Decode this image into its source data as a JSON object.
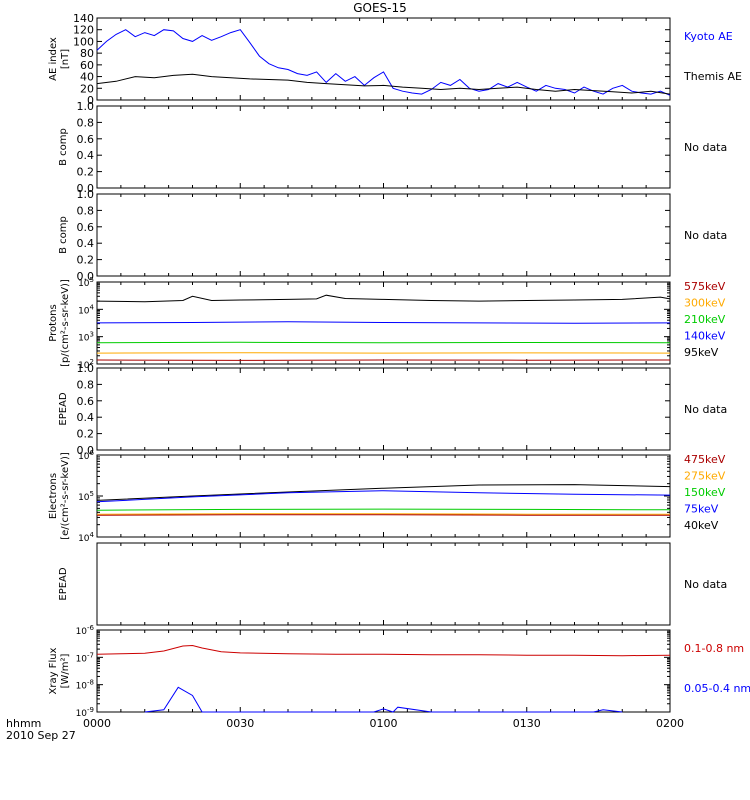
{
  "title": "GOES-15",
  "time_axis": {
    "ticks": [
      "0000",
      "0030",
      "0100",
      "0130",
      "0200"
    ],
    "tick_minutes": [
      0,
      30,
      60,
      90,
      120
    ],
    "range_minutes": [
      0,
      120
    ],
    "corner_label_1": "hhmm",
    "corner_label_2": "2010 Sep 27"
  },
  "colors": {
    "axis": "#000000",
    "blue": "#0000ff",
    "black": "#000000",
    "red": "#cc0000",
    "orange": "#ffaa00",
    "green": "#00cc00",
    "darkred": "#aa0000"
  },
  "chart_data": [
    {
      "type": "line",
      "panel": "ae",
      "ylabel": [
        "AE index",
        "[nT]"
      ],
      "ylim": [
        0,
        140
      ],
      "scale": "linear",
      "y_ticks": [
        0,
        20,
        40,
        60,
        80,
        100,
        120,
        140
      ],
      "legend": [
        {
          "text": "Kyoto AE",
          "color": "#0000ff"
        },
        {
          "text": "Themis AE",
          "color": "#000000"
        }
      ],
      "series": [
        {
          "name": "Kyoto AE",
          "color": "#0000ff",
          "x": [
            0,
            2,
            4,
            6,
            8,
            10,
            12,
            14,
            16,
            18,
            20,
            22,
            24,
            26,
            28,
            30,
            32,
            34,
            36,
            38,
            40,
            42,
            44,
            46,
            48,
            50,
            52,
            54,
            56,
            58,
            60,
            62,
            64,
            66,
            68,
            70,
            72,
            74,
            76,
            78,
            80,
            82,
            84,
            86,
            88,
            90,
            92,
            94,
            96,
            98,
            100,
            102,
            104,
            106,
            108,
            110,
            112,
            114,
            116,
            118,
            120
          ],
          "y": [
            85,
            100,
            112,
            120,
            108,
            115,
            110,
            120,
            118,
            105,
            100,
            110,
            102,
            108,
            115,
            120,
            98,
            75,
            62,
            55,
            52,
            45,
            42,
            48,
            30,
            45,
            32,
            40,
            25,
            38,
            48,
            20,
            15,
            12,
            10,
            18,
            30,
            25,
            35,
            20,
            15,
            18,
            28,
            22,
            30,
            22,
            15,
            25,
            20,
            18,
            12,
            22,
            15,
            10,
            20,
            25,
            15,
            12,
            10,
            15,
            8
          ]
        },
        {
          "name": "Themis AE",
          "color": "#000000",
          "x": [
            0,
            4,
            8,
            12,
            16,
            20,
            24,
            28,
            32,
            36,
            40,
            44,
            48,
            52,
            56,
            60,
            64,
            68,
            72,
            76,
            80,
            84,
            88,
            92,
            96,
            100,
            104,
            108,
            112,
            116,
            120
          ],
          "y": [
            28,
            32,
            40,
            38,
            42,
            44,
            40,
            38,
            36,
            35,
            34,
            30,
            28,
            26,
            24,
            25,
            22,
            20,
            18,
            20,
            18,
            20,
            22,
            18,
            15,
            18,
            16,
            14,
            12,
            15,
            10
          ]
        }
      ]
    },
    {
      "type": "line",
      "panel": "bcomp1",
      "ylabel": [
        "B comp"
      ],
      "ylim": [
        0,
        1.0
      ],
      "scale": "linear",
      "y_ticks": [
        0.0,
        0.2,
        0.4,
        0.6,
        0.8,
        1.0
      ],
      "legend": [
        {
          "text": "No data",
          "color": "#000000"
        }
      ],
      "series": []
    },
    {
      "type": "line",
      "panel": "bcomp2",
      "ylabel": [
        "B comp"
      ],
      "ylim": [
        0,
        1.0
      ],
      "scale": "linear",
      "y_ticks": [
        0.0,
        0.2,
        0.4,
        0.6,
        0.8,
        1.0
      ],
      "legend": [
        {
          "text": "No data",
          "color": "#000000"
        }
      ],
      "series": []
    },
    {
      "type": "line",
      "panel": "protons",
      "ylabel": [
        "Protons",
        "[p/(cm²-s-sr-keV)]"
      ],
      "ylim": [
        100,
        100000
      ],
      "scale": "log",
      "y_ticks_exp": [
        2,
        3,
        4,
        5
      ],
      "legend": [
        {
          "text": "575keV",
          "color": "#aa0000"
        },
        {
          "text": "300keV",
          "color": "#ffaa00"
        },
        {
          "text": "210keV",
          "color": "#00cc00"
        },
        {
          "text": "140keV",
          "color": "#0000ff"
        },
        {
          "text": "95keV",
          "color": "#000000"
        }
      ],
      "series": [
        {
          "name": "95keV",
          "color": "#000000",
          "x": [
            0,
            10,
            18,
            20,
            24,
            30,
            40,
            46,
            48,
            52,
            60,
            70,
            80,
            90,
            100,
            110,
            118,
            120
          ],
          "y": [
            20000,
            19000,
            21000,
            30000,
            21000,
            22000,
            23000,
            24000,
            33000,
            25000,
            23000,
            21000,
            20000,
            21000,
            22000,
            23000,
            28000,
            24000
          ]
        },
        {
          "name": "140keV",
          "color": "#0000ff",
          "x": [
            0,
            20,
            40,
            60,
            80,
            100,
            120
          ],
          "y": [
            3200,
            3300,
            3500,
            3300,
            3200,
            3100,
            3200
          ]
        },
        {
          "name": "210keV",
          "color": "#00cc00",
          "x": [
            0,
            30,
            60,
            90,
            120
          ],
          "y": [
            600,
            620,
            600,
            610,
            600
          ]
        },
        {
          "name": "300keV",
          "color": "#ffaa00",
          "x": [
            0,
            30,
            60,
            90,
            120
          ],
          "y": [
            250,
            260,
            250,
            255,
            250
          ]
        },
        {
          "name": "575keV",
          "color": "#aa0000",
          "x": [
            0,
            30,
            60,
            90,
            120
          ],
          "y": [
            140,
            135,
            140,
            138,
            140
          ]
        }
      ]
    },
    {
      "type": "line",
      "panel": "epead1",
      "ylabel": [
        "EPEAD"
      ],
      "ylim": [
        0,
        1.0
      ],
      "scale": "linear",
      "y_ticks": [
        0.0,
        0.2,
        0.4,
        0.6,
        0.8,
        1.0
      ],
      "legend": [
        {
          "text": "No data",
          "color": "#000000"
        }
      ],
      "series": []
    },
    {
      "type": "line",
      "panel": "electrons",
      "ylabel": [
        "Electrons",
        "[e/(cm²-s-sr-keV)]"
      ],
      "ylim": [
        10000,
        1000000
      ],
      "scale": "log",
      "y_ticks_exp": [
        4,
        5,
        6
      ],
      "legend": [
        {
          "text": "475keV",
          "color": "#aa0000"
        },
        {
          "text": "275keV",
          "color": "#ffaa00"
        },
        {
          "text": "150keV",
          "color": "#00cc00"
        },
        {
          "text": "75keV",
          "color": "#0000ff"
        },
        {
          "text": "40keV",
          "color": "#000000"
        }
      ],
      "series": [
        {
          "name": "40keV",
          "color": "#000000",
          "x": [
            0,
            20,
            40,
            60,
            80,
            100,
            120
          ],
          "y": [
            78000,
            100000,
            125000,
            155000,
            185000,
            190000,
            170000
          ]
        },
        {
          "name": "75keV",
          "color": "#0000ff",
          "x": [
            0,
            20,
            40,
            60,
            80,
            100,
            120
          ],
          "y": [
            72000,
            95000,
            120000,
            135000,
            120000,
            110000,
            105000
          ]
        },
        {
          "name": "150keV",
          "color": "#00cc00",
          "x": [
            0,
            30,
            60,
            90,
            120
          ],
          "y": [
            45000,
            47000,
            48000,
            47000,
            46000
          ]
        },
        {
          "name": "275keV",
          "color": "#ffaa00",
          "x": [
            0,
            30,
            60,
            90,
            120
          ],
          "y": [
            36000,
            37000,
            37000,
            36000,
            36000
          ]
        },
        {
          "name": "475keV",
          "color": "#aa0000",
          "x": [
            0,
            30,
            60,
            90,
            120
          ],
          "y": [
            34000,
            35000,
            35000,
            34000,
            34000
          ]
        }
      ]
    },
    {
      "type": "line",
      "panel": "epead2",
      "ylabel": [
        "EPEAD"
      ],
      "ylim": [
        0,
        1.0
      ],
      "scale": "linear",
      "y_ticks": [],
      "legend": [
        {
          "text": "No data",
          "color": "#000000"
        }
      ],
      "series": []
    },
    {
      "type": "line",
      "panel": "xray",
      "ylabel": [
        "Xray Flux",
        "[W/m²]"
      ],
      "ylim": [
        1e-09,
        1e-06
      ],
      "scale": "log",
      "y_ticks_exp": [
        -9,
        -8,
        -7,
        -6
      ],
      "legend": [
        {
          "text": "0.1-0.8 nm",
          "color": "#cc0000"
        },
        {
          "text": "0.05-0.4 nm",
          "color": "#0000ff"
        }
      ],
      "series": [
        {
          "name": "0.1-0.8 nm",
          "color": "#cc0000",
          "x": [
            0,
            5,
            10,
            14,
            18,
            20,
            22,
            26,
            30,
            40,
            50,
            60,
            70,
            80,
            90,
            100,
            110,
            120
          ],
          "y": [
            1.3e-07,
            1.35e-07,
            1.4e-07,
            1.7e-07,
            2.6e-07,
            2.7e-07,
            2.2e-07,
            1.6e-07,
            1.45e-07,
            1.35e-07,
            1.3e-07,
            1.3e-07,
            1.25e-07,
            1.25e-07,
            1.2e-07,
            1.2e-07,
            1.15e-07,
            1.2e-07
          ]
        },
        {
          "name": "0.05-0.4 nm",
          "color": "#0000ff",
          "x": [
            10,
            14,
            17,
            20,
            22,
            58,
            60,
            62,
            63,
            70,
            104,
            106,
            110
          ],
          "y": [
            1e-09,
            1.2e-09,
            8e-09,
            4e-09,
            1e-09,
            1e-09,
            1.3e-09,
            1e-09,
            1.5e-09,
            1e-09,
            1e-09,
            1.2e-09,
            1e-09
          ]
        }
      ]
    }
  ]
}
